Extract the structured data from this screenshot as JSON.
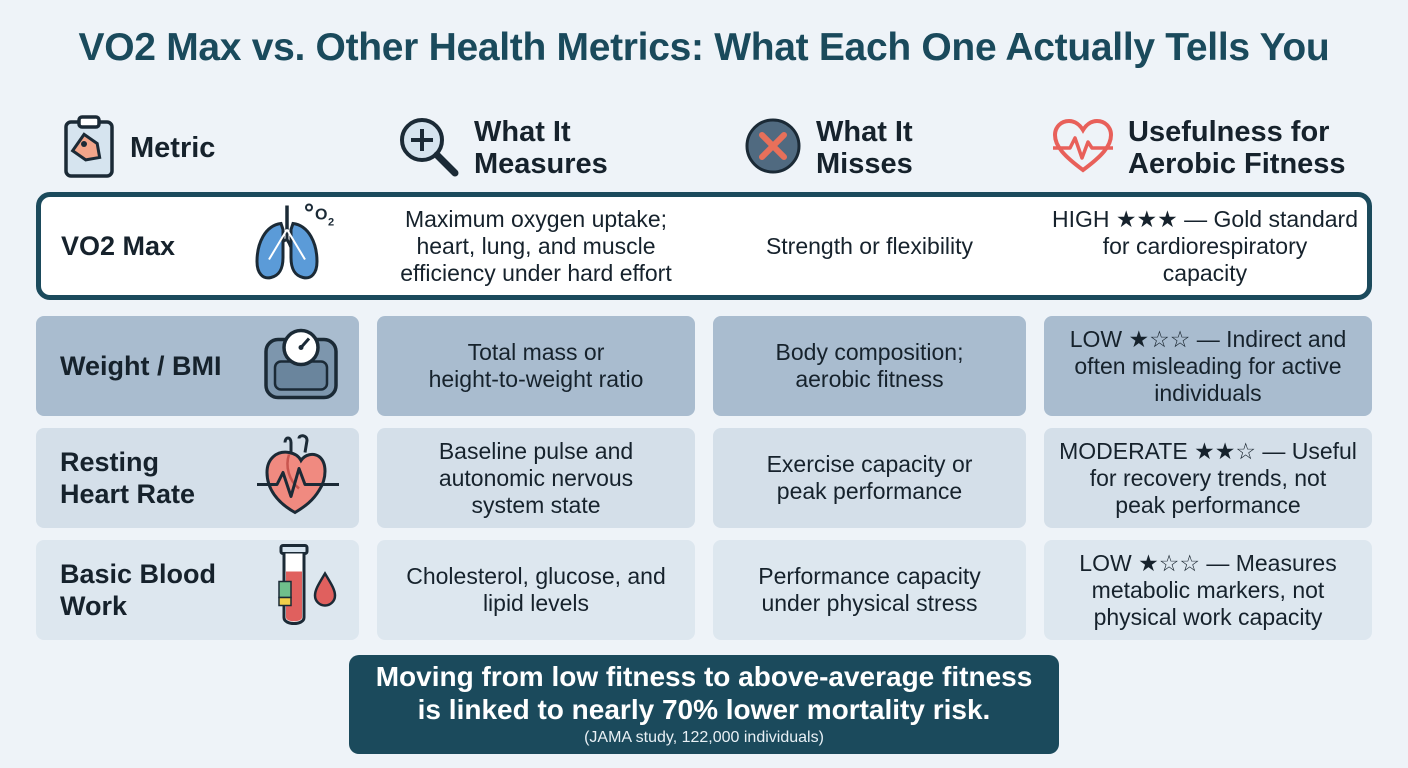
{
  "title": "VO2 Max vs. Other Health Metrics: What Each One Actually Tells You",
  "headers": {
    "metric": "Metric",
    "measures_1": "What It",
    "measures_2": "Measures",
    "misses_1": "What It",
    "misses_2": "Misses",
    "usefulness_1": "Usefulness for",
    "usefulness_2": "Aerobic Fitness"
  },
  "rows": [
    {
      "name_1": "VO2 Max",
      "name_2": "",
      "icon": "lungs-icon",
      "measures": [
        "Maximum oxygen uptake;",
        "heart, lung, and muscle",
        "efficiency under hard effort"
      ],
      "misses": [
        "Strength or flexibility"
      ],
      "usefulness": [
        "HIGH ★★★ — Gold standard",
        "for cardiorespiratory",
        "capacity"
      ]
    },
    {
      "name_1": "Weight / BMI",
      "name_2": "",
      "icon": "scale-icon",
      "measures": [
        "Total mass or",
        "height-to-weight ratio"
      ],
      "misses": [
        "Body composition;",
        "aerobic fitness"
      ],
      "usefulness": [
        "LOW ★☆☆ — Indirect and",
        "often misleading for active",
        "individuals"
      ]
    },
    {
      "name_1": "Resting",
      "name_2": "Heart Rate",
      "icon": "heart-icon",
      "measures": [
        "Baseline pulse and",
        "autonomic nervous",
        "system state"
      ],
      "misses": [
        "Exercise capacity or",
        "peak performance"
      ],
      "usefulness": [
        "MODERATE ★★☆ — Useful",
        "for recovery trends, not",
        "peak performance"
      ]
    },
    {
      "name_1": "Basic Blood",
      "name_2": "Work",
      "icon": "test-tube-icon",
      "measures": [
        "Cholesterol, glucose, and",
        "lipid levels"
      ],
      "misses": [
        "Performance capacity",
        "under physical stress"
      ],
      "usefulness": [
        "LOW ★☆☆ — Measures",
        "metabolic markers, not",
        "physical work capacity"
      ]
    }
  ],
  "note": {
    "line_1": "Moving from low fitness to above-average fitness",
    "line_2": "is linked to nearly 70% lower mortality risk.",
    "source": "(JAMA study, 122,000 individuals)"
  },
  "colors": {
    "accent": "#1b4a5c",
    "shade": "#a9bccf",
    "light": "#d4dfe9",
    "icon_red": "#e8605a",
    "icon_blue": "#4d93d6"
  }
}
